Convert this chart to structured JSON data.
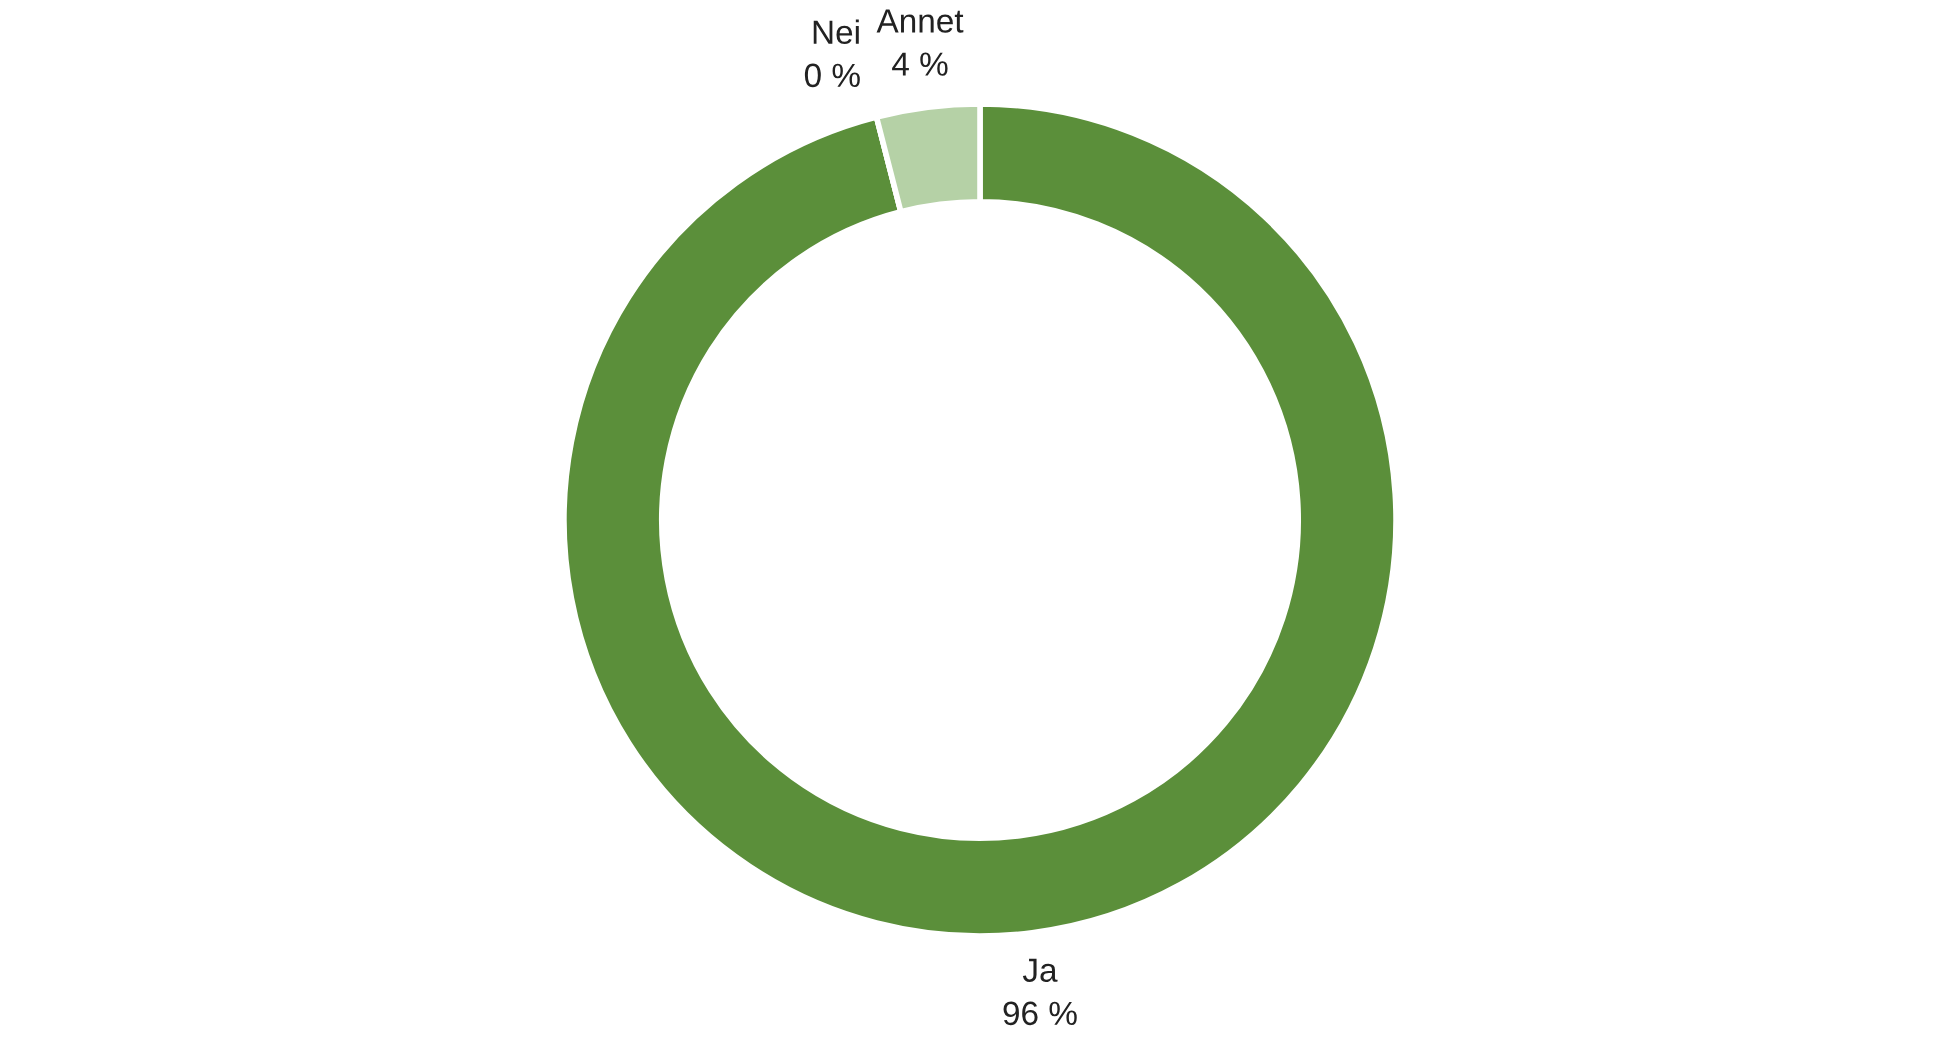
{
  "chart_data": {
    "type": "donut",
    "categories": [
      "Ja",
      "Nei",
      "Annet"
    ],
    "values": [
      96,
      0,
      4
    ],
    "colors": [
      "#5b8f3a",
      "#3e6b27",
      "#b5d1a6"
    ],
    "value_labels": [
      "96 %",
      "0 %",
      "4 %"
    ]
  }
}
